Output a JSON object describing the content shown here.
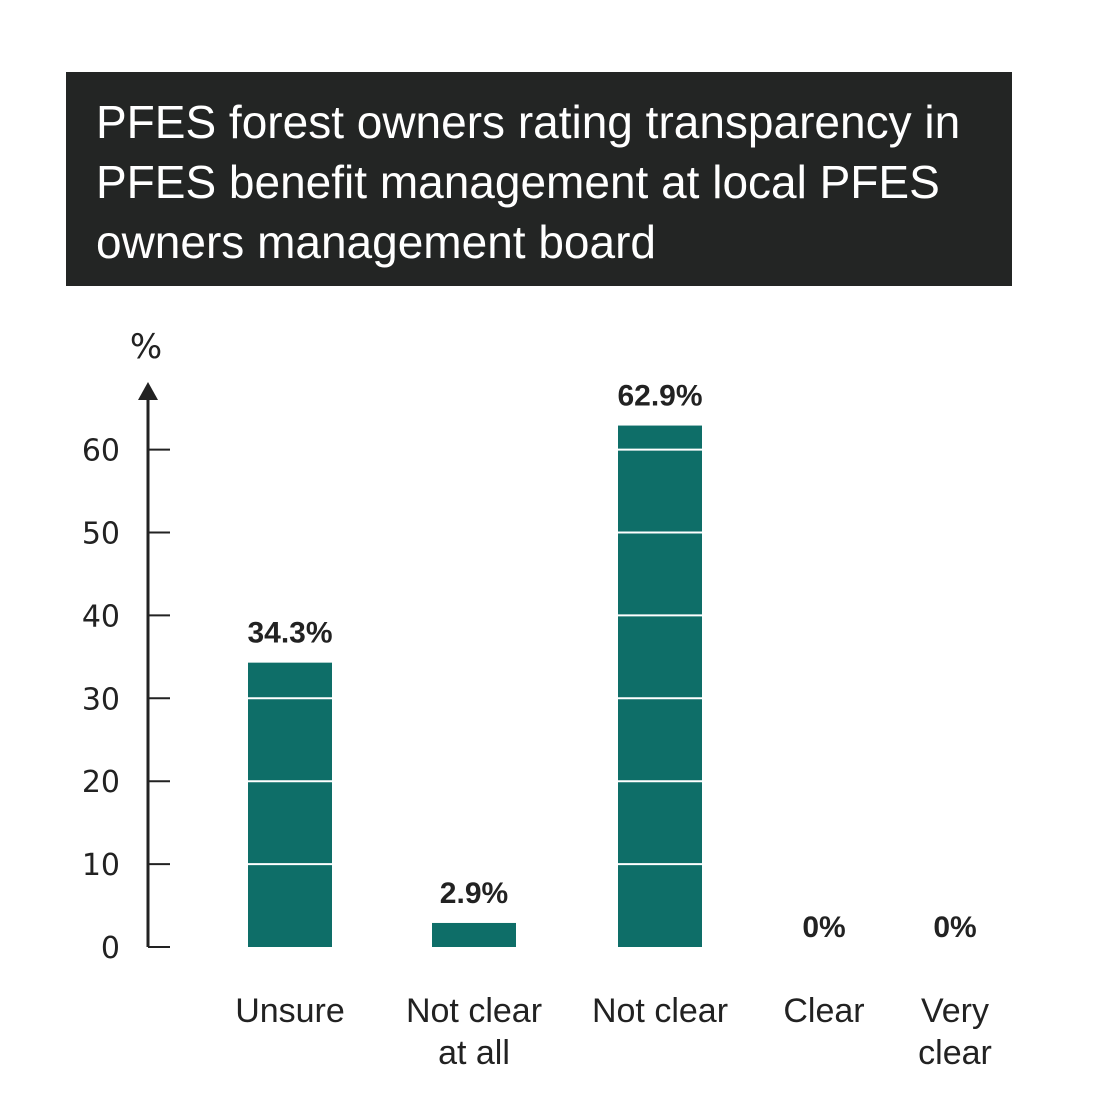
{
  "title": "PFES forest owners rating transparency in PFES benefit management at local PFES owners management board",
  "chart_data": {
    "type": "bar",
    "title": "PFES forest owners rating transparency in PFES benefit management at local PFES owners management board",
    "ylabel": "%",
    "xlabel": "",
    "ylim": [
      0,
      60
    ],
    "yticks": [
      0,
      10,
      20,
      30,
      40,
      50,
      60
    ],
    "categories": [
      [
        "Unsure"
      ],
      [
        "Not clear",
        "at all"
      ],
      [
        "Not clear"
      ],
      [
        "Clear"
      ],
      [
        "Very",
        "clear"
      ]
    ],
    "values": [
      34.3,
      2.9,
      62.9,
      0,
      0
    ],
    "data_labels": [
      "34.3%",
      "2.9%",
      "62.9%",
      "0%",
      "0%"
    ],
    "grid": false,
    "bar_color": "#0e6e68",
    "bar_stripe_color": "#ffffff"
  }
}
